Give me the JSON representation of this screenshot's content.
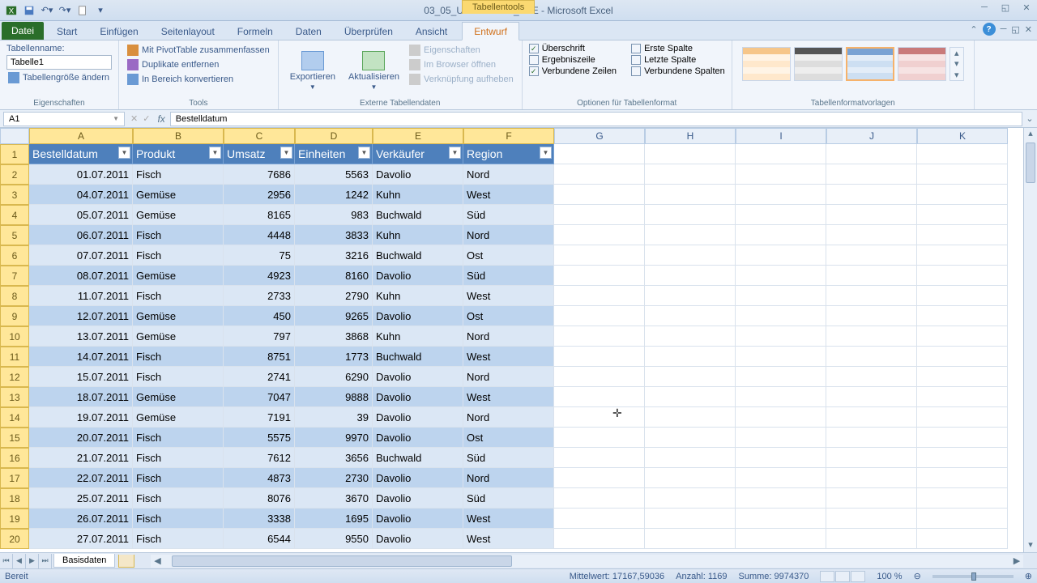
{
  "app": {
    "title": "03_05_Umsatzdaten_LOE - Microsoft Excel",
    "tabletools": "Tabellentools"
  },
  "tabs": {
    "file": "Datei",
    "list": [
      "Start",
      "Einfügen",
      "Seitenlayout",
      "Formeln",
      "Daten",
      "Überprüfen",
      "Ansicht"
    ],
    "active": "Entwurf"
  },
  "ribbon": {
    "g1": {
      "label": "Eigenschaften",
      "l1": "Tabellenname:",
      "name": "Tabelle1",
      "resize": "Tabellengröße ändern"
    },
    "g2": {
      "label": "Tools",
      "a": "Mit PivotTable zusammenfassen",
      "b": "Duplikate entfernen",
      "c": "In Bereich konvertieren"
    },
    "g3": {
      "label": "Externe Tabellendaten",
      "exp": "Exportieren",
      "upd": "Aktualisieren",
      "a": "Eigenschaften",
      "b": "Im Browser öffnen",
      "c": "Verknüpfung aufheben"
    },
    "g4": {
      "label": "Optionen für Tabellenformat",
      "a": "Überschrift",
      "b": "Ergebniszeile",
      "c": "Verbundene Zeilen",
      "d": "Erste Spalte",
      "e": "Letzte Spalte",
      "f": "Verbundene Spalten"
    },
    "g5": {
      "label": "Tabellenformatvorlagen"
    }
  },
  "fbar": {
    "name": "A1",
    "formula": "Bestelldatum"
  },
  "columns": {
    "list": [
      "A",
      "B",
      "C",
      "D",
      "E",
      "F"
    ],
    "rest": [
      "G",
      "H",
      "I",
      "J",
      "K"
    ],
    "widths": [
      128,
      112,
      88,
      96,
      112,
      112
    ],
    "restW": 112
  },
  "headers": [
    "Bestelldatum",
    "Produkt",
    "Umsatz",
    "Einheiten",
    "Verkäufer",
    "Region"
  ],
  "rows": [
    [
      "01.07.2011",
      "Fisch",
      "7686",
      "5563",
      "Davolio",
      "Nord"
    ],
    [
      "04.07.2011",
      "Gemüse",
      "2956",
      "1242",
      "Kuhn",
      "West"
    ],
    [
      "05.07.2011",
      "Gemüse",
      "8165",
      "983",
      "Buchwald",
      "Süd"
    ],
    [
      "06.07.2011",
      "Fisch",
      "4448",
      "3833",
      "Kuhn",
      "Nord"
    ],
    [
      "07.07.2011",
      "Fisch",
      "75",
      "3216",
      "Buchwald",
      "Ost"
    ],
    [
      "08.07.2011",
      "Gemüse",
      "4923",
      "8160",
      "Davolio",
      "Süd"
    ],
    [
      "11.07.2011",
      "Fisch",
      "2733",
      "2790",
      "Kuhn",
      "West"
    ],
    [
      "12.07.2011",
      "Gemüse",
      "450",
      "9265",
      "Davolio",
      "Ost"
    ],
    [
      "13.07.2011",
      "Gemüse",
      "797",
      "3868",
      "Kuhn",
      "Nord"
    ],
    [
      "14.07.2011",
      "Fisch",
      "8751",
      "1773",
      "Buchwald",
      "West"
    ],
    [
      "15.07.2011",
      "Fisch",
      "2741",
      "6290",
      "Davolio",
      "Nord"
    ],
    [
      "18.07.2011",
      "Gemüse",
      "7047",
      "9888",
      "Davolio",
      "West"
    ],
    [
      "19.07.2011",
      "Gemüse",
      "7191",
      "39",
      "Davolio",
      "Nord"
    ],
    [
      "20.07.2011",
      "Fisch",
      "5575",
      "9970",
      "Davolio",
      "Ost"
    ],
    [
      "21.07.2011",
      "Fisch",
      "7612",
      "3656",
      "Buchwald",
      "Süd"
    ],
    [
      "22.07.2011",
      "Fisch",
      "4873",
      "2730",
      "Davolio",
      "Nord"
    ],
    [
      "25.07.2011",
      "Fisch",
      "8076",
      "3670",
      "Davolio",
      "Süd"
    ],
    [
      "26.07.2011",
      "Fisch",
      "3338",
      "1695",
      "Davolio",
      "West"
    ],
    [
      "27.07.2011",
      "Fisch",
      "6544",
      "9550",
      "Davolio",
      "West"
    ]
  ],
  "numCols": [
    0,
    2,
    3
  ],
  "sheet": {
    "name": "Basisdaten"
  },
  "status": {
    "ready": "Bereit",
    "avg": "Mittelwert: 17167,59036",
    "cnt": "Anzahl: 1169",
    "sum": "Summe: 9974370",
    "zoom": "100 %"
  },
  "styleThumbs": [
    {
      "h": "#f6c68a",
      "r": [
        "#fff4e6",
        "#ffe8cc",
        "#fff4e6",
        "#ffe8cc"
      ]
    },
    {
      "h": "#555",
      "r": [
        "#eee",
        "#ddd",
        "#eee",
        "#ddd"
      ]
    },
    {
      "h": "#7aa3d4",
      "r": [
        "#e3edf8",
        "#cddff2",
        "#e3edf8",
        "#cddff2"
      ]
    },
    {
      "h": "#c97a7a",
      "r": [
        "#f6e3e3",
        "#f0d0d0",
        "#f6e3e3",
        "#f0d0d0"
      ]
    }
  ]
}
